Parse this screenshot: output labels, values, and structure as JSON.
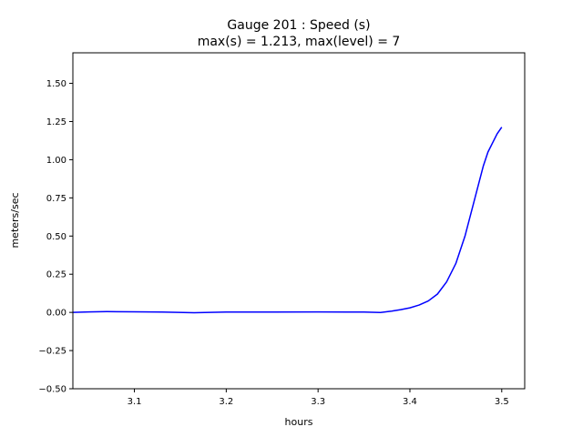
{
  "chart_data": {
    "type": "line",
    "title_lines": [
      "Gauge 201 : Speed (s)",
      "max(s) =   1.213,    max(level) = 7"
    ],
    "xlabel": "hours",
    "ylabel": "meters/sec",
    "xlim": [
      3.033,
      3.525
    ],
    "ylim": [
      -0.5,
      1.7
    ],
    "xticks": [
      3.1,
      3.2,
      3.3,
      3.4,
      3.5
    ],
    "xtick_labels": [
      "3.1",
      "3.2",
      "3.3",
      "3.4",
      "3.5"
    ],
    "yticks": [
      -0.5,
      -0.25,
      0,
      0.25,
      0.5,
      0.75,
      1.0,
      1.25,
      1.5
    ],
    "ytick_labels": [
      "−0.50",
      "−0.25",
      "0.00",
      "0.25",
      "0.50",
      "0.75",
      "1.00",
      "1.25",
      "1.50"
    ],
    "grid": false,
    "series": [
      {
        "color": "#0000ff",
        "x": [
          3.033,
          3.05,
          3.07,
          3.1,
          3.13,
          3.165,
          3.2,
          3.25,
          3.3,
          3.35,
          3.368,
          3.38,
          3.39,
          3.4,
          3.41,
          3.42,
          3.43,
          3.44,
          3.45,
          3.46,
          3.47,
          3.48,
          3.485,
          3.49,
          3.495,
          3.5
        ],
        "y": [
          0.0,
          0.003,
          0.005,
          0.004,
          0.002,
          -0.002,
          0.002,
          0.002,
          0.003,
          0.002,
          -0.001,
          0.008,
          0.018,
          0.03,
          0.048,
          0.075,
          0.12,
          0.2,
          0.32,
          0.5,
          0.73,
          0.96,
          1.05,
          1.11,
          1.17,
          1.213
        ]
      }
    ]
  }
}
